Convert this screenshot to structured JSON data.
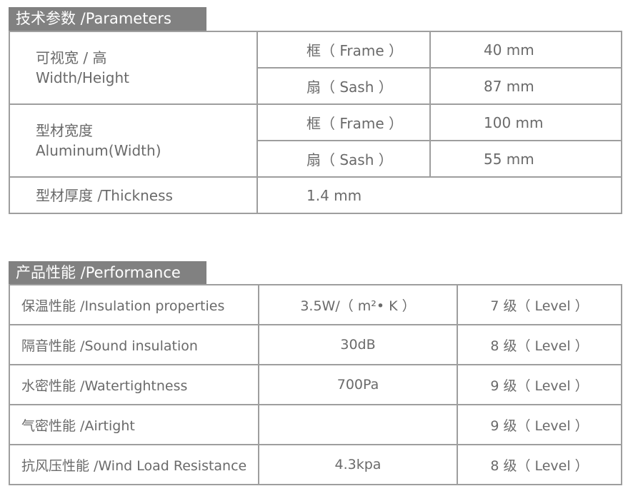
{
  "parameters": {
    "title": "技术参数 /Parameters",
    "rows": [
      {
        "label_cn": "可视宽 / 高",
        "label_en": "Width/Height",
        "frame_label": "框（ Frame ）",
        "frame_value": "40 mm",
        "sash_label": "扇（ Sash ）",
        "sash_value": "87 mm"
      },
      {
        "label_cn": "型材宽度",
        "label_en": "Aluminum(Width)",
        "frame_label": "框（ Frame ）",
        "frame_value": "100 mm",
        "sash_label": "扇（ Sash ）",
        "sash_value": "55 mm"
      }
    ],
    "thickness": {
      "label": "型材厚度 /Thickness",
      "value": "1.4 mm"
    }
  },
  "performance": {
    "title": "产品性能 /Performance",
    "rows": [
      {
        "label": "保温性能 /Insulation properties",
        "value": "3.5W/（ m²• K ）",
        "level": "7 级（ Level ）"
      },
      {
        "label": "隔音性能 /Sound insulation",
        "value": "30dB",
        "level": "8 级（ Level ）"
      },
      {
        "label": "水密性能 /Watertightness",
        "value": "700Pa",
        "level": "9 级（ Level ）"
      },
      {
        "label": "气密性能 /Airtight",
        "value": "",
        "level": "9 级（ Level ）"
      },
      {
        "label": "抗风压性能 /Wind Load Resistance",
        "value": "4.3kpa",
        "level": "8 级（ Level ）"
      }
    ]
  }
}
